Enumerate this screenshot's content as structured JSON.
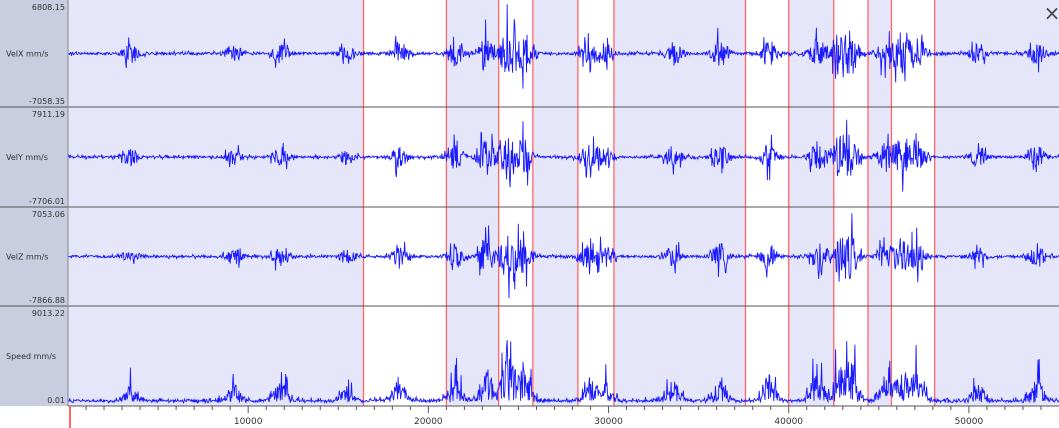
{
  "chart_data": {
    "type": "line",
    "xlim": [
      0,
      55000
    ],
    "x_ticks": [
      10000,
      20000,
      30000,
      40000,
      50000
    ],
    "x_tick_labels": [
      "10000",
      "20000",
      "30000",
      "40000",
      "50000"
    ],
    "selected_segments": [
      [
        16400,
        21000
      ],
      [
        23900,
        25800
      ],
      [
        28300,
        30300
      ],
      [
        37600,
        40000
      ],
      [
        42500,
        44400
      ],
      [
        45700,
        48100
      ]
    ],
    "channels": [
      {
        "name": "VelX mm/s",
        "max_label": "6808.15",
        "min_label": "-7058.35",
        "range": [
          -7058.35,
          6808.15
        ]
      },
      {
        "name": "VelY mm/s",
        "max_label": "7911.19",
        "min_label": "-7706.01",
        "range": [
          -7706.01,
          7911.19
        ]
      },
      {
        "name": "VelZ mm/s",
        "max_label": "7053.06",
        "min_label": "-7866.88",
        "range": [
          -7866.88,
          7053.06
        ]
      },
      {
        "name": "Speed mm/s",
        "max_label": "9013.22",
        "min_label": "0.01",
        "range": [
          0.01,
          9013.22
        ]
      }
    ]
  },
  "colors": {
    "signal": "#1a1aff",
    "plot_bg": "#e6e6fa",
    "selection_bg": "#ffffff",
    "selection_edge": "#ff6666",
    "panel_label_bg": "#c8cde0",
    "divider": "#555555"
  },
  "icons": {
    "close": "close-icon"
  },
  "close_glyph": "×"
}
